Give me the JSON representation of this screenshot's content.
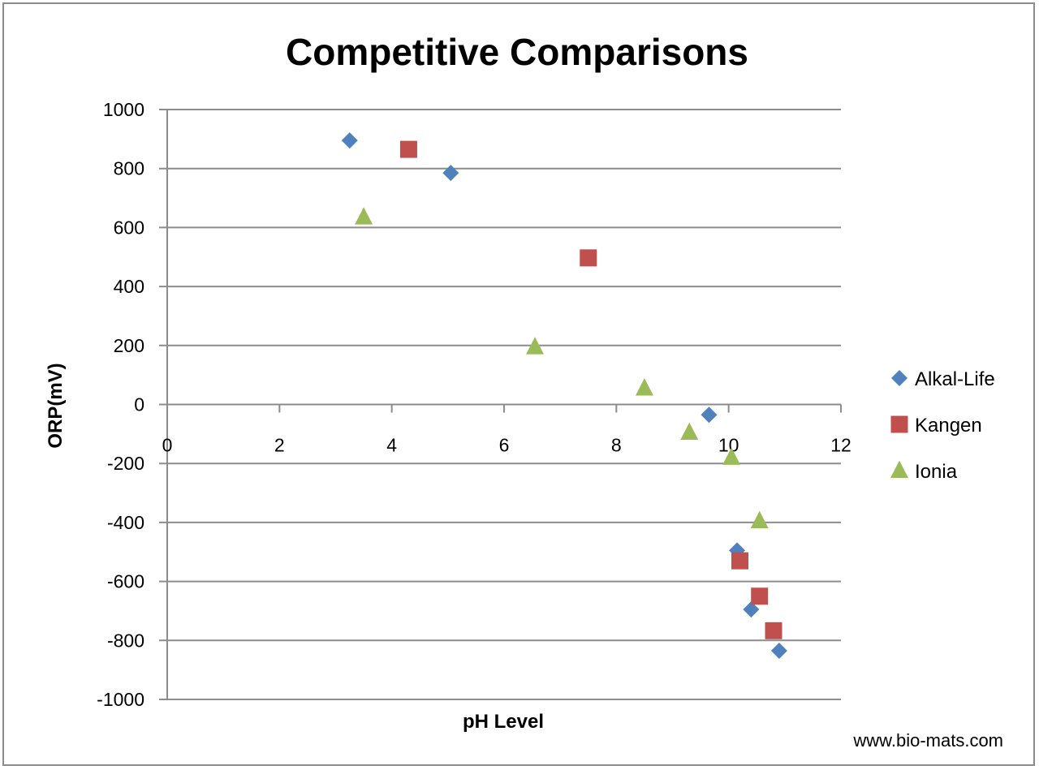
{
  "chart_data": {
    "type": "scatter",
    "title": "Competitive Comparisons",
    "xlabel": "pH Level",
    "ylabel": "ORP(mV)",
    "xlim": [
      0,
      12
    ],
    "ylim": [
      -1000,
      1000
    ],
    "x_ticks": [
      0,
      2,
      4,
      6,
      8,
      10,
      12
    ],
    "y_ticks": [
      1000,
      800,
      600,
      400,
      200,
      0,
      -200,
      -400,
      -600,
      -800,
      -1000
    ],
    "grid": "horizontal",
    "legend_position": "right",
    "series": [
      {
        "name": "Alkal-Life",
        "marker": "diamond",
        "color": "#4F81BD",
        "points": [
          {
            "x": 3.25,
            "y": 895
          },
          {
            "x": 5.05,
            "y": 785
          },
          {
            "x": 9.65,
            "y": -35
          },
          {
            "x": 10.15,
            "y": -495
          },
          {
            "x": 10.4,
            "y": -695
          },
          {
            "x": 10.9,
            "y": -835
          }
        ]
      },
      {
        "name": "Kangen",
        "marker": "square",
        "color": "#C0504D",
        "points": [
          {
            "x": 4.3,
            "y": 865
          },
          {
            "x": 7.5,
            "y": 497
          },
          {
            "x": 10.2,
            "y": -530
          },
          {
            "x": 10.55,
            "y": -650
          },
          {
            "x": 10.8,
            "y": -767
          }
        ]
      },
      {
        "name": "Ionia",
        "marker": "triangle",
        "color": "#9BBB59",
        "points": [
          {
            "x": 3.5,
            "y": 635
          },
          {
            "x": 6.55,
            "y": 195
          },
          {
            "x": 8.5,
            "y": 55
          },
          {
            "x": 9.3,
            "y": -95
          },
          {
            "x": 10.05,
            "y": -180
          },
          {
            "x": 10.55,
            "y": -395
          }
        ]
      }
    ]
  },
  "footer": {
    "source": "www.bio-mats.com"
  }
}
